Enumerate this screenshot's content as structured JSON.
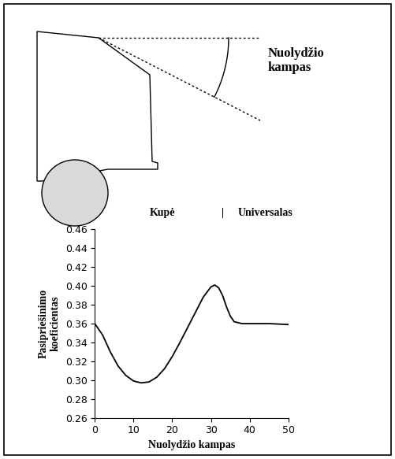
{
  "diagram": {
    "label": "Nuolydžio\nkampas"
  },
  "chart_data": {
    "type": "line",
    "annotations": [
      "Kupė",
      "|",
      "Universalas"
    ],
    "x_label": "Nuolydžio kampas",
    "y_label": "Pasipriešinimo\nkoeficientas",
    "x": [
      0,
      2,
      4,
      6,
      8,
      10,
      12,
      14,
      16,
      18,
      20,
      22,
      24,
      26,
      28,
      30,
      31,
      32,
      33,
      34,
      35,
      36,
      38,
      40,
      45,
      50
    ],
    "values": [
      0.36,
      0.348,
      0.33,
      0.315,
      0.305,
      0.299,
      0.297,
      0.298,
      0.303,
      0.312,
      0.325,
      0.34,
      0.356,
      0.372,
      0.388,
      0.399,
      0.401,
      0.398,
      0.39,
      0.378,
      0.368,
      0.362,
      0.36,
      0.36,
      0.36,
      0.359
    ],
    "color": "#000000",
    "xlim": [
      0,
      50
    ],
    "xticks": [
      0,
      10,
      20,
      30,
      40,
      50
    ],
    "ylim": [
      0.26,
      0.46
    ],
    "yticks": [
      0.26,
      0.28,
      {
        "value": 0.3,
        "label": "0.30"
      },
      0.32,
      0.34,
      0.36,
      0.38,
      {
        "value": 0.4,
        "label": "0.40"
      },
      0.42,
      0.44,
      0.46
    ],
    "grid": false
  }
}
